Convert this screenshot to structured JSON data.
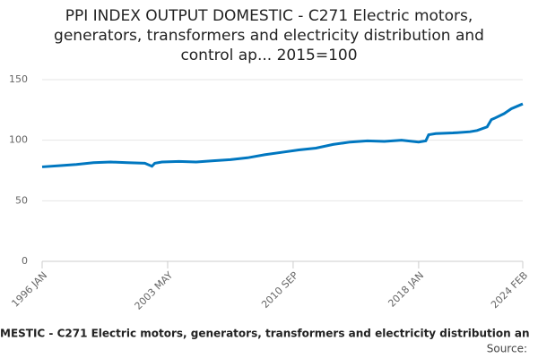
{
  "chart_data": {
    "type": "line",
    "title": [
      "PPI INDEX OUTPUT DOMESTIC - C271 Electric motors,",
      "generators, transformers and electricity distribution and",
      "control ap... 2015=100"
    ],
    "x_label": "MESTIC - C271 Electric motors, generators, transformers and electricity distribution an",
    "source": "Source:",
    "xticks": [
      "1996 JAN",
      "2003 MAY",
      "2010 SEP",
      "2018 JAN",
      "2024 FEB"
    ],
    "x": [
      "1996 JAN",
      "1997 JAN",
      "1998 JAN",
      "1999 JAN",
      "2000 JAN",
      "2001 JAN",
      "2002 JAN",
      "2002 JUN",
      "2002 AUG",
      "2003 JAN",
      "2004 JAN",
      "2005 JAN",
      "2006 JAN",
      "2007 JAN",
      "2008 JAN",
      "2009 JAN",
      "2010 JAN",
      "2011 JAN",
      "2012 JAN",
      "2013 JAN",
      "2014 JAN",
      "2015 JAN",
      "2016 JAN",
      "2017 JAN",
      "2018 JAN",
      "2018 JUN",
      "2018 AUG",
      "2019 JAN",
      "2020 JAN",
      "2021 JAN",
      "2021 JUN",
      "2022 JAN",
      "2022 APR",
      "2022 JUN",
      "2023 JAN",
      "2023 JUN",
      "2024 FEB"
    ],
    "series": [
      {
        "name": "PPI",
        "color": "#0077c0",
        "values": [
          78,
          79,
          80,
          81.5,
          82,
          81.5,
          81,
          78.5,
          81,
          82,
          82.5,
          82,
          83,
          84,
          85.5,
          88,
          90,
          92,
          93.5,
          96.5,
          98.5,
          99.5,
          99,
          100,
          98.5,
          99.5,
          104.5,
          105.5,
          106,
          107,
          108,
          111,
          117,
          118,
          122,
          126,
          130
        ]
      }
    ],
    "ylim": [
      0,
      150
    ],
    "yticks": [
      0,
      50,
      100,
      150
    ],
    "grid": true
  }
}
